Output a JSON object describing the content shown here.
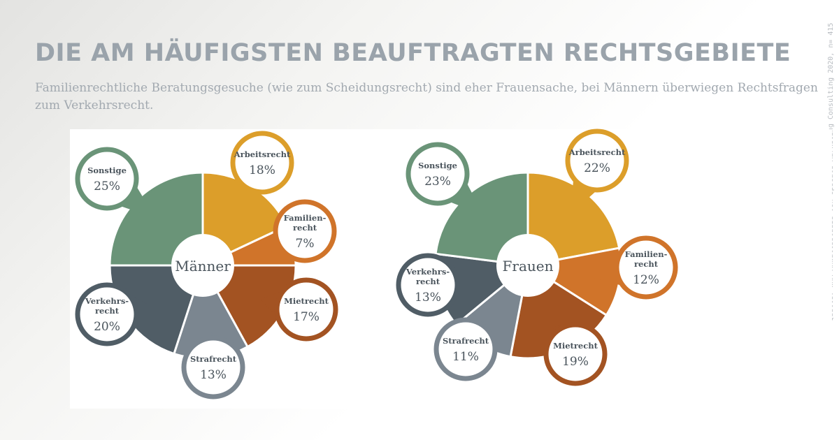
{
  "title": "DIE AM HÄUFIGSTEN BEAUFTRAGTEN RECHTSGEBIETE",
  "subtitle": "Familienrechtliche Beratungsgesuche (wie zum Scheidungsrecht) sind eher Frauensache, bei Männern überwiegen Rechtsfragen zum Verkehrsrecht.",
  "source": "Quelle: WKR-Anwaltsstudie von Upscale Marketing Consulting 2020, n= 415",
  "colors": {
    "Arbeitsrecht": "#dc9e2a",
    "Familienrecht": "#d0742a",
    "Mietrecht": "#a35322",
    "Strafrecht": "#7b8690",
    "Verkehrsrecht": "#505d66",
    "Sonstige": "#6a9478"
  },
  "chart_data": [
    {
      "type": "pie",
      "center_label": "Männer",
      "slices": [
        {
          "key": "Arbeitsrecht",
          "label": [
            "Arbeitsrecht"
          ],
          "value": 18,
          "display": "18%"
        },
        {
          "key": "Familienrecht",
          "label": [
            "Familien-",
            "recht"
          ],
          "value": 7,
          "display": "7%"
        },
        {
          "key": "Mietrecht",
          "label": [
            "Mietrecht"
          ],
          "value": 17,
          "display": "17%"
        },
        {
          "key": "Strafrecht",
          "label": [
            "Strafrecht"
          ],
          "value": 13,
          "display": "13%"
        },
        {
          "key": "Verkehrsrecht",
          "label": [
            "Verkehrs-",
            "recht"
          ],
          "value": 20,
          "display": "20%"
        },
        {
          "key": "Sonstige",
          "label": [
            "Sonstige"
          ],
          "value": 25,
          "display": "25%"
        }
      ]
    },
    {
      "type": "pie",
      "center_label": "Frauen",
      "slices": [
        {
          "key": "Arbeitsrecht",
          "label": [
            "Arbeitsrecht"
          ],
          "value": 22,
          "display": "22%"
        },
        {
          "key": "Familienrecht",
          "label": [
            "Familien-",
            "recht"
          ],
          "value": 12,
          "display": "12%"
        },
        {
          "key": "Mietrecht",
          "label": [
            "Mietrecht"
          ],
          "value": 19,
          "display": "19%"
        },
        {
          "key": "Strafrecht",
          "label": [
            "Strafrecht"
          ],
          "value": 11,
          "display": "11%"
        },
        {
          "key": "Verkehrsrecht",
          "label": [
            "Verkehrs-",
            "recht"
          ],
          "value": 13,
          "display": "13%"
        },
        {
          "key": "Sonstige",
          "label": [
            "Sonstige"
          ],
          "value": 23,
          "display": "23%"
        }
      ]
    }
  ]
}
